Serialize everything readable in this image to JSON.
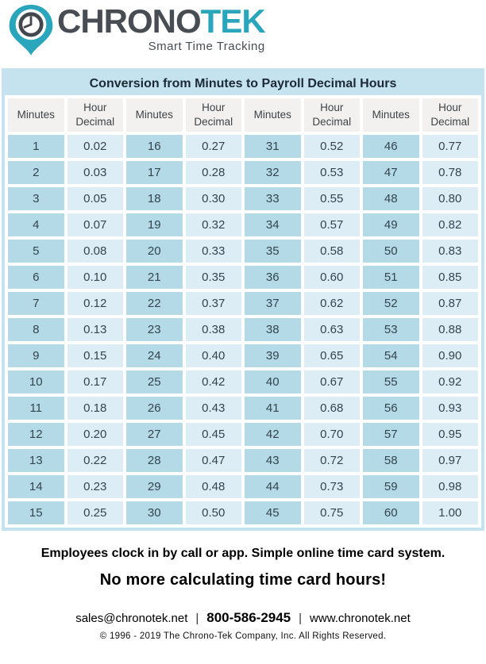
{
  "logo": {
    "brand_primary": "CHRONO",
    "brand_secondary": "TEK",
    "tagline": "Smart Time Tracking",
    "colors": {
      "teal": "#2aa6bc",
      "charcoal": "#474d53"
    }
  },
  "table": {
    "title": "Conversion from Minutes to Payroll Decimal Hours",
    "header_minutes": "Minutes",
    "header_hour_line1": "Hour",
    "header_hour_line2": "Decimal",
    "colors": {
      "frame_and_title_bg": "#c4e3ef",
      "header_cell_bg": "#f2f1ef",
      "minutes_cell_bg": "#b4d9e7",
      "decimal_cell_bg": "#dcedf5",
      "grid_gap": "#ffffff",
      "cell_text": "#33454e",
      "title_text": "#1b2a36"
    },
    "rows": [
      [
        "1",
        "0.02",
        "16",
        "0.27",
        "31",
        "0.52",
        "46",
        "0.77"
      ],
      [
        "2",
        "0.03",
        "17",
        "0.28",
        "32",
        "0.53",
        "47",
        "0.78"
      ],
      [
        "3",
        "0.05",
        "18",
        "0.30",
        "33",
        "0.55",
        "48",
        "0.80"
      ],
      [
        "4",
        "0.07",
        "19",
        "0.32",
        "34",
        "0.57",
        "49",
        "0.82"
      ],
      [
        "5",
        "0.08",
        "20",
        "0.33",
        "35",
        "0.58",
        "50",
        "0.83"
      ],
      [
        "6",
        "0.10",
        "21",
        "0.35",
        "36",
        "0.60",
        "51",
        "0.85"
      ],
      [
        "7",
        "0.12",
        "22",
        "0.37",
        "37",
        "0.62",
        "52",
        "0.87"
      ],
      [
        "8",
        "0.13",
        "23",
        "0.38",
        "38",
        "0.63",
        "53",
        "0.88"
      ],
      [
        "9",
        "0.15",
        "24",
        "0.40",
        "39",
        "0.65",
        "54",
        "0.90"
      ],
      [
        "10",
        "0.17",
        "25",
        "0.42",
        "40",
        "0.67",
        "55",
        "0.92"
      ],
      [
        "11",
        "0.18",
        "26",
        "0.43",
        "41",
        "0.68",
        "56",
        "0.93"
      ],
      [
        "12",
        "0.20",
        "27",
        "0.45",
        "42",
        "0.70",
        "57",
        "0.95"
      ],
      [
        "13",
        "0.22",
        "28",
        "0.47",
        "43",
        "0.72",
        "58",
        "0.97"
      ],
      [
        "14",
        "0.23",
        "29",
        "0.48",
        "44",
        "0.73",
        "59",
        "0.98"
      ],
      [
        "15",
        "0.25",
        "30",
        "0.50",
        "45",
        "0.75",
        "60",
        "1.00"
      ]
    ]
  },
  "footer": {
    "pitch_line1": "Employees clock in by call or app. Simple online time card system.",
    "pitch_line2": "No more calculating time card hours!",
    "contact": {
      "email": "sales@chronotek.net",
      "phone": "800-586-2945",
      "website": "www.chronotek.net",
      "separator": "|"
    },
    "copyright": "© 1996 - 2019 The Chrono-Tek Company, Inc. All Rights Reserved."
  }
}
